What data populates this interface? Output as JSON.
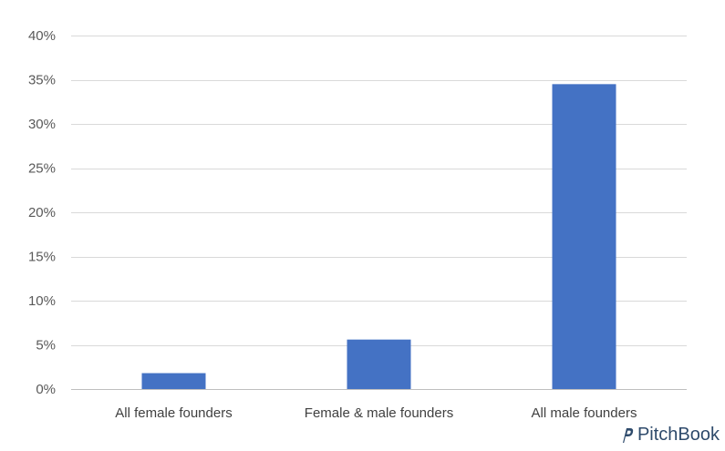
{
  "chart_data": {
    "type": "bar",
    "categories": [
      "All female founders",
      "Female & male founders",
      "All male founders"
    ],
    "values": [
      1.8,
      5.6,
      34.5
    ],
    "ylim": [
      0,
      40
    ],
    "yticks": [
      "0%",
      "5%",
      "10%",
      "15%",
      "20%",
      "25%",
      "30%",
      "35%",
      "40%"
    ],
    "ytick_values": [
      0,
      5,
      10,
      15,
      20,
      25,
      30,
      35,
      40
    ],
    "grid": true,
    "bar_color": "#4472C4",
    "grid_color": "#d9d9d9",
    "axis_color": "#bfbfbf"
  },
  "brand": {
    "name": "PitchBook",
    "icon": "pitchbook-logo-icon"
  }
}
